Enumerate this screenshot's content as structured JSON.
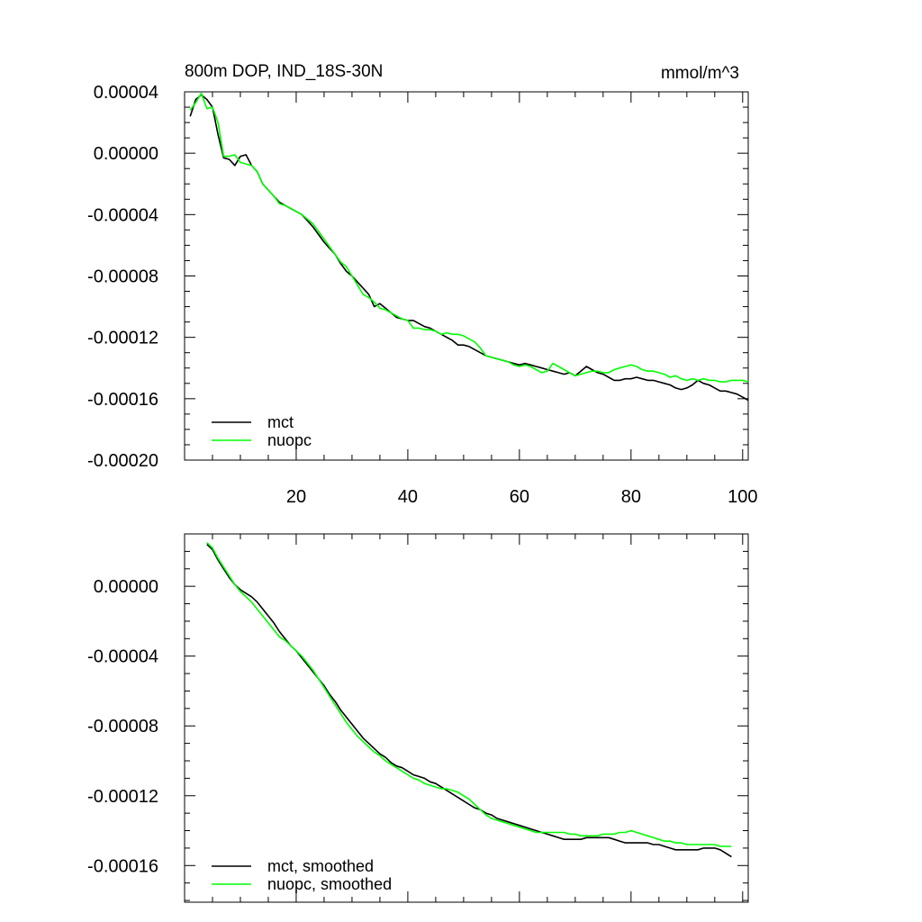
{
  "chart_data": [
    {
      "type": "line",
      "title": "800m DOP, IND_18S-30N",
      "units": "mmol/m^3",
      "xlabel": "",
      "ylabel": "",
      "xlim": [
        0,
        101
      ],
      "ylim": [
        -0.0002,
        4e-05
      ],
      "x_ticks": [
        20,
        40,
        60,
        80,
        100
      ],
      "x_tick_labels": [
        "20",
        "40",
        "60",
        "80",
        "100"
      ],
      "y_ticks": [
        4e-05,
        0,
        -4e-05,
        -8e-05,
        -0.00012,
        -0.00016,
        -0.0002
      ],
      "y_tick_labels": [
        "0.00004",
        "0.00000",
        "-0.00004",
        "-0.00008",
        "-0.00012",
        "-0.00016",
        "-0.00020"
      ],
      "legend_position": "bottom-left",
      "grid": false,
      "series": [
        {
          "name": "mct",
          "color": "#000000",
          "x": [
            1,
            2,
            3,
            4,
            5,
            6,
            7,
            8,
            9,
            10,
            11,
            12,
            13,
            14,
            15,
            16,
            17,
            18,
            19,
            20,
            21,
            22,
            23,
            24,
            25,
            26,
            27,
            28,
            29,
            30,
            31,
            32,
            33,
            34,
            35,
            36,
            37,
            38,
            39,
            40,
            41,
            42,
            43,
            44,
            45,
            46,
            47,
            48,
            49,
            50,
            51,
            52,
            53,
            54,
            55,
            56,
            57,
            58,
            59,
            60,
            61,
            62,
            63,
            64,
            65,
            66,
            67,
            68,
            69,
            70,
            71,
            72,
            73,
            74,
            75,
            76,
            77,
            78,
            79,
            80,
            81,
            82,
            83,
            84,
            85,
            86,
            87,
            88,
            89,
            90,
            91,
            92,
            93,
            94,
            95,
            96,
            97,
            98,
            99,
            100,
            101
          ],
          "values": [
            2.4e-05,
            3.5e-05,
            3.8e-05,
            3.5e-05,
            3e-05,
            1.2e-05,
            -3e-06,
            -4e-06,
            -8e-06,
            -2e-06,
            -1e-06,
            -8e-06,
            -1.2e-05,
            -2e-05,
            -2.4e-05,
            -2.8e-05,
            -3.2e-05,
            -3.4e-05,
            -3.6e-05,
            -3.8e-05,
            -4e-05,
            -4.4e-05,
            -4.8e-05,
            -5.3e-05,
            -5.8e-05,
            -6.2e-05,
            -6.6e-05,
            -7.2e-05,
            -7.7e-05,
            -8e-05,
            -8.4e-05,
            -8.8e-05,
            -9.2e-05,
            -0.0001,
            -9.8e-05,
            -0.000101,
            -0.000104,
            -0.000107,
            -0.000108,
            -0.000109,
            -0.000109,
            -0.000111,
            -0.000113,
            -0.000114,
            -0.000116,
            -0.000118,
            -0.00012,
            -0.000122,
            -0.000125,
            -0.000125,
            -0.000126,
            -0.000128,
            -0.00013,
            -0.000132,
            -0.000133,
            -0.000134,
            -0.000135,
            -0.000136,
            -0.000137,
            -0.000138,
            -0.000137,
            -0.000138,
            -0.000139,
            -0.00014,
            -0.000141,
            -0.000142,
            -0.000143,
            -0.000144,
            -0.000143,
            -0.000145,
            -0.000142,
            -0.000139,
            -0.000141,
            -0.000143,
            -0.000144,
            -0.000146,
            -0.000148,
            -0.000148,
            -0.000147,
            -0.000147,
            -0.000146,
            -0.000147,
            -0.000148,
            -0.000148,
            -0.000149,
            -0.00015,
            -0.000151,
            -0.000153,
            -0.000154,
            -0.000153,
            -0.000151,
            -0.000148,
            -0.00015,
            -0.000151,
            -0.000153,
            -0.000155,
            -0.000155,
            -0.000156,
            -0.000157,
            -0.000159,
            -0.000161
          ]
        },
        {
          "name": "nuopc",
          "color": "#00ff00",
          "x": [
            1,
            2,
            3,
            4,
            5,
            6,
            7,
            8,
            9,
            10,
            11,
            12,
            13,
            14,
            15,
            16,
            17,
            18,
            19,
            20,
            21,
            22,
            23,
            24,
            25,
            26,
            27,
            28,
            29,
            30,
            31,
            32,
            33,
            34,
            35,
            36,
            37,
            38,
            39,
            40,
            41,
            42,
            43,
            44,
            45,
            46,
            47,
            48,
            49,
            50,
            51,
            52,
            53,
            54,
            55,
            56,
            57,
            58,
            59,
            60,
            61,
            62,
            63,
            64,
            65,
            66,
            67,
            68,
            69,
            70,
            71,
            72,
            73,
            74,
            75,
            76,
            77,
            78,
            79,
            80,
            81,
            82,
            83,
            84,
            85,
            86,
            87,
            88,
            89,
            90,
            91,
            92,
            93,
            94,
            95,
            96,
            97,
            98,
            99,
            100,
            101
          ],
          "values": [
            2.8e-05,
            3.3e-05,
            3.9e-05,
            2.9e-05,
            3e-05,
            2e-05,
            -2e-06,
            -2e-06,
            -1e-06,
            -6e-06,
            -7e-06,
            -8e-06,
            -1.2e-05,
            -2e-05,
            -2.4e-05,
            -2.8e-05,
            -3.3e-05,
            -3.4e-05,
            -3.6e-05,
            -3.8e-05,
            -4e-05,
            -4.3e-05,
            -4.6e-05,
            -5.1e-05,
            -5.6e-05,
            -6.1e-05,
            -6.6e-05,
            -7.1e-05,
            -7.4e-05,
            -8e-05,
            -8.6e-05,
            -9.2e-05,
            -9.4e-05,
            -9.7e-05,
            -0.000101,
            -0.000102,
            -0.000104,
            -0.000106,
            -0.000108,
            -0.000109,
            -0.000114,
            -0.000114,
            -0.000115,
            -0.000115,
            -0.000116,
            -0.000118,
            -0.000117,
            -0.000118,
            -0.000118,
            -0.000119,
            -0.000121,
            -0.000123,
            -0.000127,
            -0.000132,
            -0.000133,
            -0.000134,
            -0.000135,
            -0.000136,
            -0.000138,
            -0.000139,
            -0.000138,
            -0.000139,
            -0.000141,
            -0.000143,
            -0.000142,
            -0.000137,
            -0.000139,
            -0.000141,
            -0.000143,
            -0.000145,
            -0.000144,
            -0.000143,
            -0.000142,
            -0.000142,
            -0.000143,
            -0.000143,
            -0.000141,
            -0.00014,
            -0.000139,
            -0.000138,
            -0.000139,
            -0.000141,
            -0.000142,
            -0.000142,
            -0.000143,
            -0.000144,
            -0.000146,
            -0.000145,
            -0.000147,
            -0.000148,
            -0.000147,
            -0.000148,
            -0.000147,
            -0.000148,
            -0.000148,
            -0.000149,
            -0.000149,
            -0.000148,
            -0.000148,
            -0.000148,
            -0.000149
          ]
        }
      ]
    },
    {
      "type": "line",
      "title": "",
      "xlabel": "",
      "ylabel": "",
      "xlim": [
        0,
        101
      ],
      "ylim": [
        -0.000181,
        3e-05
      ],
      "x_ticks": [
        20,
        40,
        60,
        80,
        100
      ],
      "x_tick_labels": [],
      "y_ticks": [
        0,
        -4e-05,
        -8e-05,
        -0.00012,
        -0.00016
      ],
      "y_tick_labels": [
        "0.00000",
        "-0.00004",
        "-0.00008",
        "-0.00012",
        "-0.00016"
      ],
      "legend_position": "bottom-left",
      "grid": false,
      "series": [
        {
          "name": "mct, smoothed",
          "color": "#000000",
          "x": [
            4,
            5,
            6,
            7,
            8,
            9,
            10,
            11,
            12,
            13,
            14,
            15,
            16,
            17,
            18,
            19,
            20,
            21,
            22,
            23,
            24,
            25,
            26,
            27,
            28,
            29,
            30,
            31,
            32,
            33,
            34,
            35,
            36,
            37,
            38,
            39,
            40,
            41,
            42,
            43,
            44,
            45,
            46,
            47,
            48,
            49,
            50,
            51,
            52,
            53,
            54,
            55,
            56,
            57,
            58,
            59,
            60,
            61,
            62,
            63,
            64,
            65,
            66,
            67,
            68,
            69,
            70,
            71,
            72,
            73,
            74,
            75,
            76,
            77,
            78,
            79,
            80,
            81,
            82,
            83,
            84,
            85,
            86,
            87,
            88,
            89,
            90,
            91,
            92,
            93,
            94,
            95,
            96,
            97,
            98
          ],
          "values": [
            2.4e-05,
            2.1e-05,
            1.5e-05,
            1e-05,
            5e-06,
            1e-06,
            -2e-06,
            -4e-06,
            -6e-06,
            -9e-06,
            -1.3e-05,
            -1.7e-05,
            -2.1e-05,
            -2.6e-05,
            -3e-05,
            -3.4e-05,
            -3.7e-05,
            -4.1e-05,
            -4.5e-05,
            -4.9e-05,
            -5.3e-05,
            -5.7e-05,
            -6.2e-05,
            -6.6e-05,
            -7.1e-05,
            -7.5e-05,
            -7.9e-05,
            -8.3e-05,
            -8.7e-05,
            -9e-05,
            -9.3e-05,
            -9.6e-05,
            -9.8e-05,
            -0.000101,
            -0.000103,
            -0.000104,
            -0.000106,
            -0.000108,
            -0.000109,
            -0.00011,
            -0.000112,
            -0.000113,
            -0.000115,
            -0.000117,
            -0.000119,
            -0.000121,
            -0.000123,
            -0.000125,
            -0.000127,
            -0.000128,
            -0.00013,
            -0.000131,
            -0.000133,
            -0.000134,
            -0.000135,
            -0.000136,
            -0.000137,
            -0.000138,
            -0.000139,
            -0.00014,
            -0.000141,
            -0.000142,
            -0.000143,
            -0.000144,
            -0.000145,
            -0.000145,
            -0.000145,
            -0.000145,
            -0.000144,
            -0.000144,
            -0.000144,
            -0.000144,
            -0.000144,
            -0.000145,
            -0.000146,
            -0.000147,
            -0.000147,
            -0.000147,
            -0.000147,
            -0.000147,
            -0.000148,
            -0.000148,
            -0.000149,
            -0.00015,
            -0.000151,
            -0.000151,
            -0.000151,
            -0.000151,
            -0.000151,
            -0.00015,
            -0.00015,
            -0.00015,
            -0.000151,
            -0.000153,
            -0.000155
          ]
        },
        {
          "name": "nuopc, smoothed",
          "color": "#00ff00",
          "x": [
            4,
            5,
            6,
            7,
            8,
            9,
            10,
            11,
            12,
            13,
            14,
            15,
            16,
            17,
            18,
            19,
            20,
            21,
            22,
            23,
            24,
            25,
            26,
            27,
            28,
            29,
            30,
            31,
            32,
            33,
            34,
            35,
            36,
            37,
            38,
            39,
            40,
            41,
            42,
            43,
            44,
            45,
            46,
            47,
            48,
            49,
            50,
            51,
            52,
            53,
            54,
            55,
            56,
            57,
            58,
            59,
            60,
            61,
            62,
            63,
            64,
            65,
            66,
            67,
            68,
            69,
            70,
            71,
            72,
            73,
            74,
            75,
            76,
            77,
            78,
            79,
            80,
            81,
            82,
            83,
            84,
            85,
            86,
            87,
            88,
            89,
            90,
            91,
            92,
            93,
            94,
            95,
            96,
            97,
            98
          ],
          "values": [
            2.5e-05,
            2.2e-05,
            1.6e-05,
            1.1e-05,
            6e-06,
            1e-06,
            -3e-06,
            -6e-06,
            -9e-06,
            -1.3e-05,
            -1.7e-05,
            -2.1e-05,
            -2.5e-05,
            -2.9e-05,
            -3.1e-05,
            -3.4e-05,
            -3.7e-05,
            -4e-05,
            -4.4e-05,
            -4.8e-05,
            -5.3e-05,
            -5.8e-05,
            -6.3e-05,
            -6.8e-05,
            -7.3e-05,
            -7.8e-05,
            -8.2e-05,
            -8.6e-05,
            -8.9e-05,
            -9.2e-05,
            -9.5e-05,
            -9.7e-05,
            -0.0001,
            -0.000102,
            -0.000104,
            -0.000106,
            -0.000108,
            -0.00011,
            -0.000111,
            -0.000113,
            -0.000114,
            -0.000115,
            -0.000116,
            -0.000116,
            -0.000117,
            -0.000118,
            -0.00012,
            -0.000122,
            -0.000125,
            -0.000128,
            -0.000131,
            -0.000133,
            -0.000134,
            -0.000135,
            -0.000136,
            -0.000137,
            -0.000138,
            -0.000139,
            -0.00014,
            -0.000141,
            -0.000141,
            -0.000141,
            -0.000141,
            -0.000141,
            -0.000141,
            -0.000142,
            -0.000142,
            -0.000143,
            -0.000143,
            -0.000143,
            -0.000143,
            -0.000142,
            -0.000142,
            -0.000142,
            -0.000141,
            -0.000141,
            -0.00014,
            -0.000141,
            -0.000142,
            -0.000143,
            -0.000144,
            -0.000145,
            -0.000146,
            -0.000146,
            -0.000147,
            -0.000147,
            -0.000148,
            -0.000148,
            -0.000148,
            -0.000148,
            -0.000148,
            -0.000148,
            -0.000149,
            -0.000149,
            -0.000149
          ]
        }
      ]
    }
  ]
}
